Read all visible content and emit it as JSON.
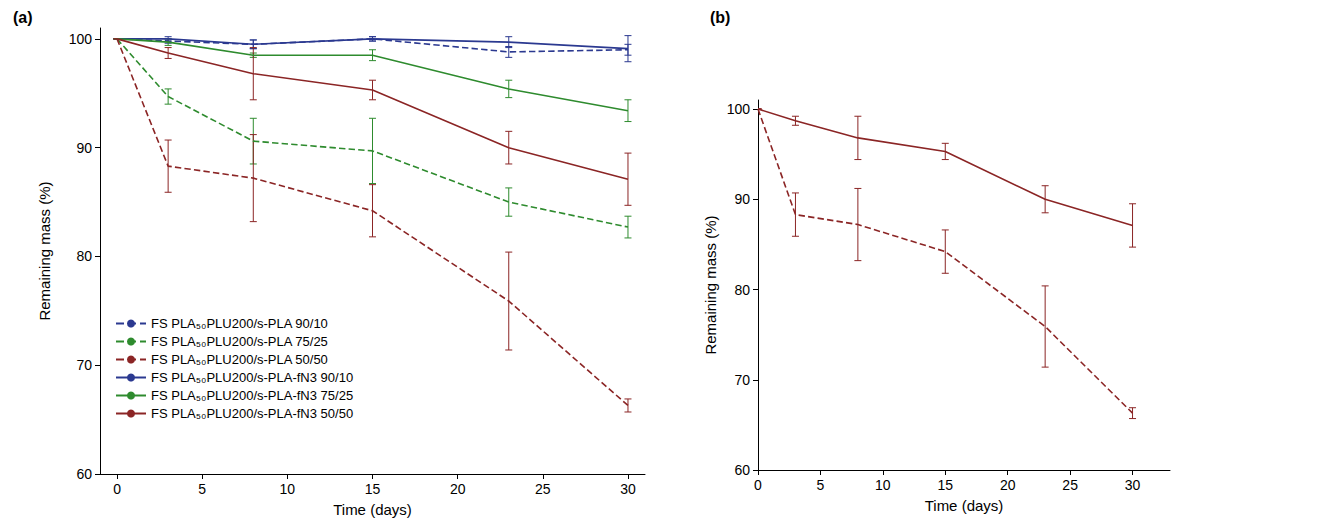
{
  "chart_data": [
    {
      "type": "line",
      "title": "(a)",
      "x_label": "Time (days)",
      "y_label": "Remaining mass (%)",
      "x": [
        0,
        3,
        8,
        15,
        23,
        30
      ],
      "xlim": [
        -1,
        31
      ],
      "xticks": [
        0,
        5,
        10,
        15,
        20,
        25,
        30
      ],
      "ylim": [
        60,
        101
      ],
      "yticks": [
        60,
        70,
        80,
        90,
        100
      ],
      "grid": false,
      "legend": "lower left",
      "series": [
        {
          "name": "FS PLA₅₀PLU200/s-PLA 90/10",
          "color": "#2b3990",
          "line_style": "dashed",
          "values": [
            100,
            99.8,
            99.5,
            100,
            98.8,
            99.0
          ],
          "errors": [
            0,
            0.2,
            0.4,
            0.2,
            0.5,
            0.5
          ]
        },
        {
          "name": "FS PLA₅₀PLU200/s-PLA 75/25",
          "color": "#2e8b2e",
          "line_style": "dashed",
          "values": [
            100,
            94.7,
            90.6,
            89.7,
            85.0,
            82.7
          ],
          "errors": [
            0,
            0.7,
            2.1,
            3.0,
            1.3,
            1.0
          ]
        },
        {
          "name": "FS PLA₅₀PLU200/s-PLA 50/50",
          "color": "#8b2525",
          "line_style": "dashed",
          "values": [
            100,
            88.3,
            87.2,
            84.2,
            75.9,
            66.3
          ],
          "errors": [
            0,
            2.4,
            4.0,
            2.4,
            4.5,
            0.6
          ]
        },
        {
          "name": "FS PLA₅₀PLU200/s-PLA-fN3 90/10",
          "color": "#2b3990",
          "line_style": "solid",
          "values": [
            100,
            100,
            99.5,
            100,
            99.7,
            99.1
          ],
          "errors": [
            0,
            0.2,
            0.4,
            0.2,
            0.5,
            1.2
          ]
        },
        {
          "name": "FS PLA₅₀PLU200/s-PLA-fN3 75/25",
          "color": "#2e8b2e",
          "line_style": "solid",
          "values": [
            100,
            99.7,
            98.5,
            98.5,
            95.4,
            93.4
          ],
          "errors": [
            0,
            0.3,
            0.2,
            0.5,
            0.8,
            1.0
          ]
        },
        {
          "name": "FS PLA₅₀PLU200/s-PLA-fN3 50/50",
          "color": "#8b2525",
          "line_style": "solid",
          "values": [
            100,
            98.7,
            96.8,
            95.3,
            90.0,
            87.1
          ],
          "errors": [
            0,
            0.5,
            2.4,
            0.9,
            1.5,
            2.4
          ]
        }
      ]
    },
    {
      "type": "line",
      "title": "(b)",
      "x_label": "Time (days)",
      "y_label": "Remaining mass (%)",
      "x": [
        0,
        3,
        8,
        15,
        23,
        30
      ],
      "xlim": [
        0,
        33
      ],
      "xticks": [
        0,
        5,
        10,
        15,
        20,
        25,
        30
      ],
      "ylim": [
        60,
        101
      ],
      "yticks": [
        60,
        70,
        80,
        90,
        100
      ],
      "grid": false,
      "series": [
        {
          "color": "#8b2525",
          "line_style": "solid",
          "values": [
            100,
            98.7,
            96.8,
            95.3,
            90.0,
            87.1
          ],
          "errors": [
            0,
            0.5,
            2.4,
            0.9,
            1.5,
            2.4
          ]
        },
        {
          "color": "#8b2525",
          "line_style": "dashed",
          "values": [
            100,
            88.3,
            87.2,
            84.2,
            75.9,
            66.3
          ],
          "errors": [
            0,
            2.4,
            4.0,
            2.4,
            4.5,
            0.6
          ]
        }
      ]
    }
  ]
}
